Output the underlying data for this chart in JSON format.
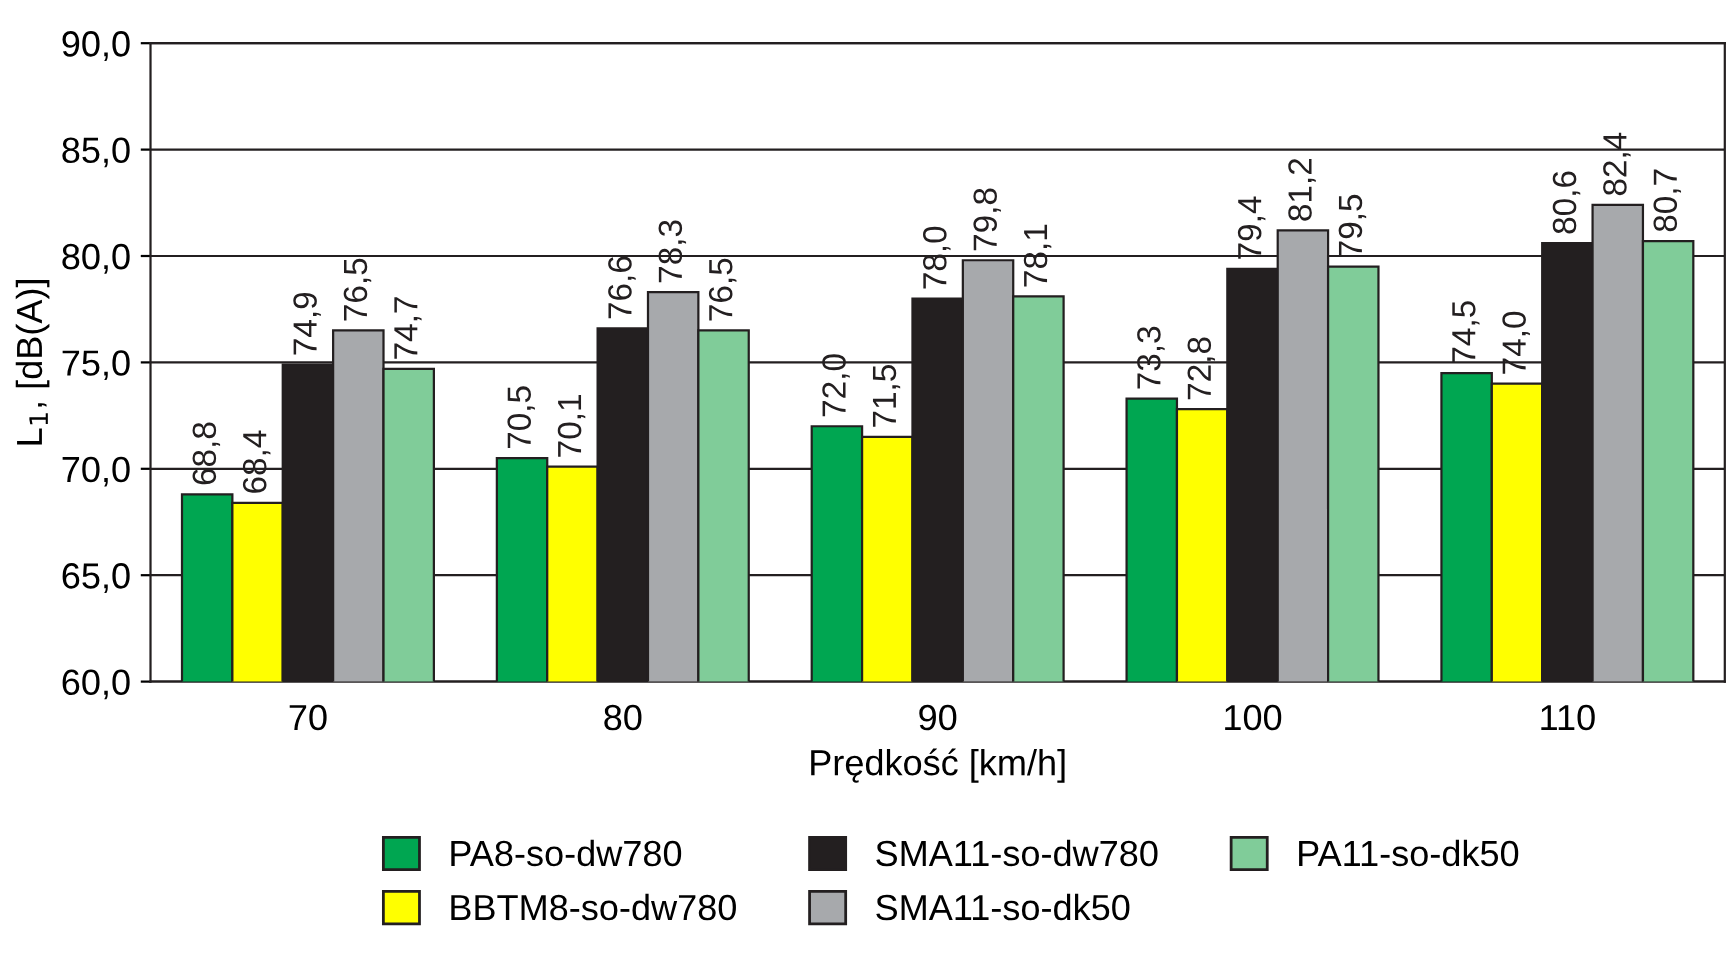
{
  "chart_data": {
    "type": "bar",
    "xlabel": "Prędkość [km/h]",
    "ylabel": "L$_{1}$, [dB(A)]",
    "categories": [
      "70",
      "80",
      "90",
      "100",
      "110"
    ],
    "series": [
      {
        "name": "PA8-so-dw780",
        "color": "#00a651",
        "values": [
          68.8,
          70.5,
          72.0,
          73.3,
          74.5
        ],
        "value_labels": [
          "68,8",
          "70,5",
          "72,0",
          "73,3",
          "74,5"
        ]
      },
      {
        "name": "BBTM8-so-dw780",
        "color": "#ffff00",
        "values": [
          68.4,
          70.1,
          71.5,
          72.8,
          74.0
        ],
        "value_labels": [
          "68,4",
          "70,1",
          "71,5",
          "72,8",
          "74,0"
        ]
      },
      {
        "name": "SMA11-so-dw780",
        "color": "#231f20",
        "values": [
          74.9,
          76.6,
          78.0,
          79.4,
          80.6
        ],
        "value_labels": [
          "74,9",
          "76,6",
          "78,0",
          "79,4",
          "80,6"
        ]
      },
      {
        "name": "SMA11-so-dk50",
        "color": "#a7a9ac",
        "values": [
          76.5,
          78.3,
          79.8,
          81.2,
          82.4
        ],
        "value_labels": [
          "76,5",
          "78,3",
          "79,8",
          "81,2",
          "82,4"
        ]
      },
      {
        "name": "PA11-so-dk50",
        "color": "#80cc99",
        "values": [
          74.7,
          76.5,
          78.1,
          79.5,
          80.7
        ],
        "value_labels": [
          "74,7",
          "76,5",
          "78,1",
          "79,5",
          "80,7"
        ]
      }
    ],
    "ylim": [
      60,
      90
    ],
    "yticks": [
      {
        "value": 60,
        "label": "60,0"
      },
      {
        "value": 65,
        "label": "65,0"
      },
      {
        "value": 70,
        "label": "70,0"
      },
      {
        "value": 75,
        "label": "75,0"
      },
      {
        "value": 80,
        "label": "80,0"
      },
      {
        "value": 85,
        "label": "85,0"
      },
      {
        "value": 90,
        "label": "90,0"
      }
    ],
    "grid": "y",
    "legend": "bottom"
  }
}
